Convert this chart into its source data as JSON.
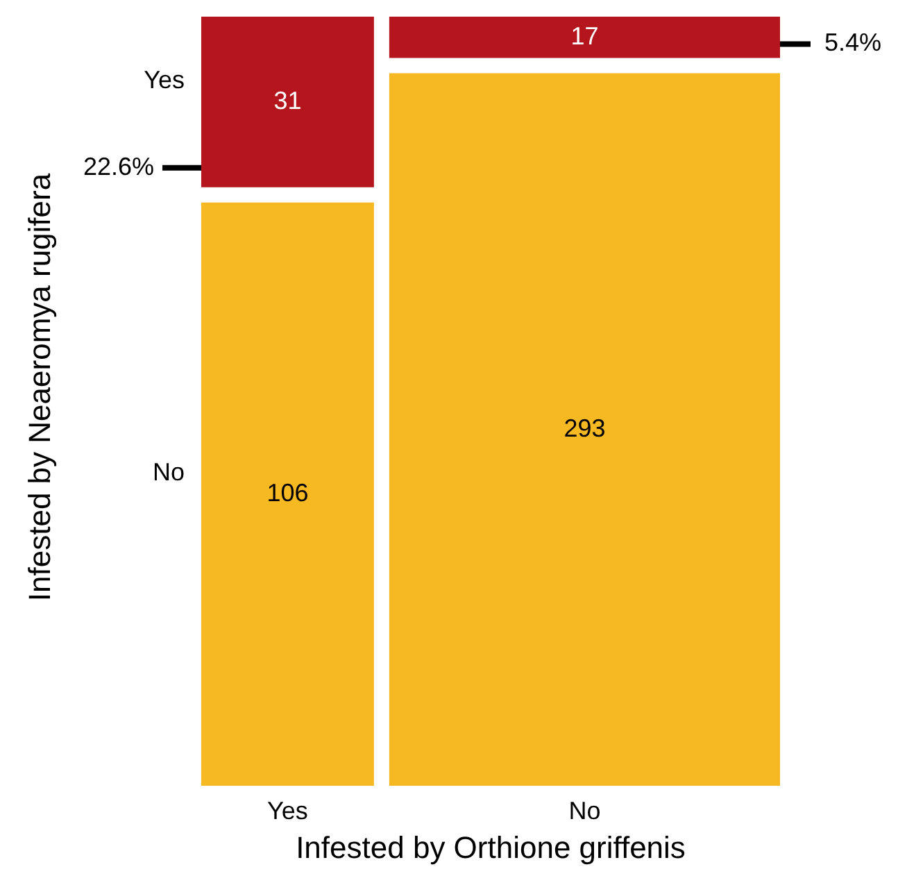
{
  "chart_data": {
    "type": "other",
    "xlabel": "Infested by Orthione griffenis",
    "ylabel": "Infested by Neaeromya rugifera",
    "categories": [
      "Yes",
      "No"
    ],
    "series": [
      {
        "name": "Yes",
        "color": "#b5161e",
        "values": [
          31,
          17
        ]
      },
      {
        "name": "No",
        "color": "#f6b921",
        "values": [
          106,
          293
        ]
      }
    ],
    "data_labels": true,
    "annotations": [
      "22.6%",
      "5.4%"
    ]
  }
}
